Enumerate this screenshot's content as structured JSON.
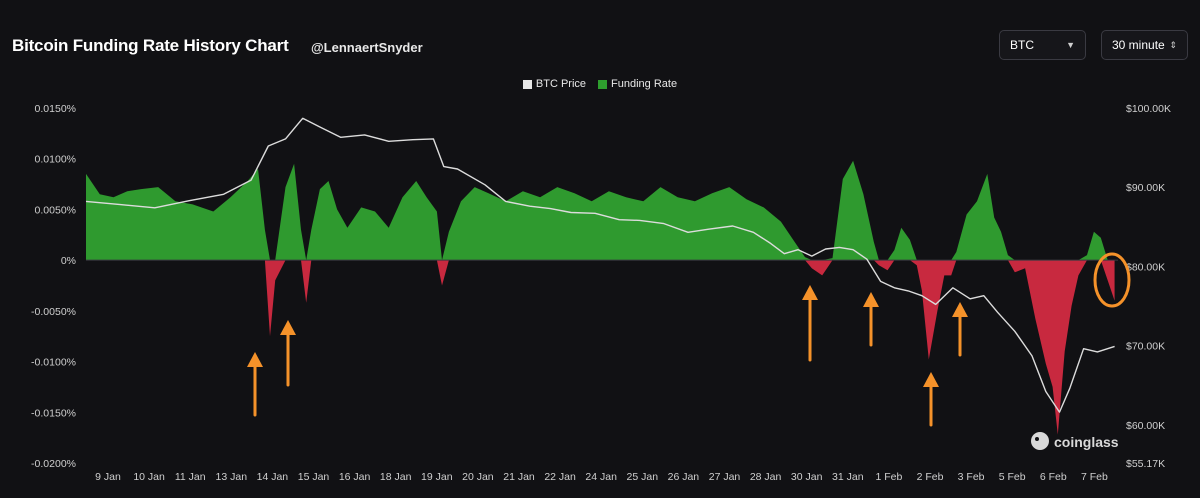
{
  "header": {
    "title": "Bitcoin Funding Rate History Chart",
    "author": "@LennaertSnyder",
    "coin_select": "BTC",
    "interval_select": "30 minute"
  },
  "legend": [
    {
      "label": "BTC Price",
      "color": "#e6e6e6"
    },
    {
      "label": "Funding Rate",
      "color": "#2e9e2e"
    }
  ],
  "watermark": "coinglass",
  "colors": {
    "positive": "#2f9a2f",
    "negative": "#c8293f",
    "price": "#dcdcdc",
    "arrow": "#f5922a"
  },
  "chart_data": {
    "type": "area",
    "title": "Bitcoin Funding Rate History Chart",
    "x_ticks": [
      "9 Jan",
      "10 Jan",
      "11 Jan",
      "13 Jan",
      "14 Jan",
      "15 Jan",
      "16 Jan",
      "18 Jan",
      "19 Jan",
      "20 Jan",
      "21 Jan",
      "22 Jan",
      "24 Jan",
      "25 Jan",
      "26 Jan",
      "27 Jan",
      "28 Jan",
      "30 Jan",
      "31 Jan",
      "1 Feb",
      "2 Feb",
      "3 Feb",
      "5 Feb",
      "6 Feb",
      "7 Feb"
    ],
    "y_left": {
      "label": "Funding Rate",
      "ticks": [
        "0.0150%",
        "0.0100%",
        "0.0050%",
        "0%",
        "-0.0050%",
        "-0.0100%",
        "-0.0150%",
        "-0.0200%"
      ],
      "range": [
        -0.02,
        0.015
      ]
    },
    "y_right": {
      "label": "BTC Price",
      "ticks": [
        "$100.00K",
        "$90.00K",
        "$80.00K",
        "$70.00K",
        "$60.00K",
        "$55.17K"
      ],
      "range": [
        55170,
        100000
      ]
    },
    "x_range": [
      8.5,
      38.5
    ],
    "series": [
      {
        "name": "Funding Rate",
        "unit": "%",
        "points": [
          [
            8.5,
            0.0085
          ],
          [
            8.9,
            0.0065
          ],
          [
            9.3,
            0.0062
          ],
          [
            9.7,
            0.0068
          ],
          [
            10.1,
            0.007
          ],
          [
            10.6,
            0.0072
          ],
          [
            11.1,
            0.0058
          ],
          [
            11.6,
            0.0055
          ],
          [
            12.2,
            0.0048
          ],
          [
            12.7,
            0.0062
          ],
          [
            13.2,
            0.0078
          ],
          [
            13.5,
            0.009
          ],
          [
            13.7,
            0.003
          ],
          [
            13.85,
            -0.0075
          ],
          [
            14.0,
            -0.002
          ],
          [
            14.3,
            0.0072
          ],
          [
            14.55,
            0.0095
          ],
          [
            14.75,
            0.003
          ],
          [
            14.9,
            -0.0042
          ],
          [
            15.05,
            0.003
          ],
          [
            15.3,
            0.007
          ],
          [
            15.55,
            0.0078
          ],
          [
            15.8,
            0.005
          ],
          [
            16.1,
            0.0032
          ],
          [
            16.5,
            0.0052
          ],
          [
            16.9,
            0.0048
          ],
          [
            17.3,
            0.0032
          ],
          [
            17.7,
            0.0062
          ],
          [
            18.1,
            0.0078
          ],
          [
            18.4,
            0.0062
          ],
          [
            18.7,
            0.0048
          ],
          [
            18.85,
            -0.0025
          ],
          [
            19.05,
            0.0028
          ],
          [
            19.4,
            0.0058
          ],
          [
            19.8,
            0.0072
          ],
          [
            20.2,
            0.0066
          ],
          [
            20.7,
            0.0058
          ],
          [
            21.2,
            0.0068
          ],
          [
            21.7,
            0.0062
          ],
          [
            22.2,
            0.0072
          ],
          [
            22.7,
            0.0066
          ],
          [
            23.2,
            0.0058
          ],
          [
            23.7,
            0.0068
          ],
          [
            24.2,
            0.0062
          ],
          [
            24.7,
            0.0058
          ],
          [
            25.2,
            0.0072
          ],
          [
            25.7,
            0.0062
          ],
          [
            26.2,
            0.0058
          ],
          [
            26.7,
            0.0066
          ],
          [
            27.2,
            0.0072
          ],
          [
            27.7,
            0.006
          ],
          [
            28.2,
            0.0052
          ],
          [
            28.7,
            0.0038
          ],
          [
            29.1,
            0.0018
          ],
          [
            29.4,
            0.0003
          ],
          [
            29.6,
            -0.0008
          ],
          [
            29.9,
            -0.0015
          ],
          [
            30.2,
            0.0002
          ],
          [
            30.5,
            0.008
          ],
          [
            30.8,
            0.0098
          ],
          [
            31.1,
            0.0065
          ],
          [
            31.4,
            0.0018
          ],
          [
            31.55,
            -0.0005
          ],
          [
            31.8,
            -0.001
          ],
          [
            32.0,
            0.001
          ],
          [
            32.2,
            0.0032
          ],
          [
            32.45,
            0.002
          ],
          [
            32.65,
            -0.0005
          ],
          [
            32.8,
            -0.003
          ],
          [
            33.0,
            -0.0098
          ],
          [
            33.25,
            -0.005
          ],
          [
            33.45,
            -0.0015
          ],
          [
            33.65,
            -0.0015
          ],
          [
            33.8,
            0.0008
          ],
          [
            34.1,
            0.0045
          ],
          [
            34.4,
            0.0058
          ],
          [
            34.7,
            0.0085
          ],
          [
            34.9,
            0.0042
          ],
          [
            35.1,
            0.0028
          ],
          [
            35.3,
            0.0005
          ],
          [
            35.5,
            -0.0012
          ],
          [
            35.8,
            -0.0008
          ],
          [
            36.1,
            -0.0058
          ],
          [
            36.4,
            -0.0102
          ],
          [
            36.6,
            -0.0125
          ],
          [
            36.75,
            -0.0172
          ],
          [
            36.95,
            -0.009
          ],
          [
            37.15,
            -0.0045
          ],
          [
            37.35,
            -0.0015
          ],
          [
            37.6,
            0.0005
          ],
          [
            37.8,
            0.0028
          ],
          [
            38.0,
            0.0022
          ],
          [
            38.2,
            -0.002
          ],
          [
            38.4,
            -0.004
          ]
        ]
      },
      {
        "name": "BTC Price",
        "unit": "USD",
        "points": [
          [
            8.5,
            88200
          ],
          [
            9.5,
            87800
          ],
          [
            10.5,
            87400
          ],
          [
            11.5,
            88300
          ],
          [
            12.5,
            89100
          ],
          [
            13.3,
            90900
          ],
          [
            13.8,
            95200
          ],
          [
            14.3,
            96100
          ],
          [
            14.8,
            98700
          ],
          [
            15.3,
            97600
          ],
          [
            15.9,
            96300
          ],
          [
            16.6,
            96600
          ],
          [
            17.3,
            95800
          ],
          [
            18.0,
            96000
          ],
          [
            18.6,
            96100
          ],
          [
            18.9,
            92600
          ],
          [
            19.3,
            92300
          ],
          [
            20.1,
            90300
          ],
          [
            20.7,
            88200
          ],
          [
            21.4,
            87600
          ],
          [
            22.0,
            87300
          ],
          [
            22.6,
            86800
          ],
          [
            23.3,
            86700
          ],
          [
            24.0,
            85900
          ],
          [
            24.6,
            85800
          ],
          [
            25.3,
            85400
          ],
          [
            26.0,
            84300
          ],
          [
            26.6,
            84700
          ],
          [
            27.3,
            85100
          ],
          [
            27.9,
            84300
          ],
          [
            28.4,
            82900
          ],
          [
            28.8,
            81600
          ],
          [
            29.2,
            82100
          ],
          [
            29.6,
            81300
          ],
          [
            30.0,
            82200
          ],
          [
            30.4,
            82400
          ],
          [
            30.8,
            82100
          ],
          [
            31.2,
            80900
          ],
          [
            31.6,
            78100
          ],
          [
            32.0,
            77300
          ],
          [
            32.4,
            76900
          ],
          [
            32.8,
            76300
          ],
          [
            33.2,
            75200
          ],
          [
            33.7,
            77300
          ],
          [
            34.2,
            75900
          ],
          [
            34.6,
            76300
          ],
          [
            35.0,
            74200
          ],
          [
            35.5,
            71800
          ],
          [
            36.0,
            68700
          ],
          [
            36.4,
            64200
          ],
          [
            36.8,
            61600
          ],
          [
            37.1,
            64600
          ],
          [
            37.5,
            69600
          ],
          [
            37.9,
            69200
          ],
          [
            38.4,
            69900
          ]
        ]
      }
    ],
    "annotations": {
      "up_arrows_at": [
        13.9,
        14.95,
        29.7,
        31.8,
        33.3,
        34.2
      ],
      "circle_at": [
        38.2,
        79000
      ]
    },
    "grid": false,
    "legend_position": "top-center"
  }
}
